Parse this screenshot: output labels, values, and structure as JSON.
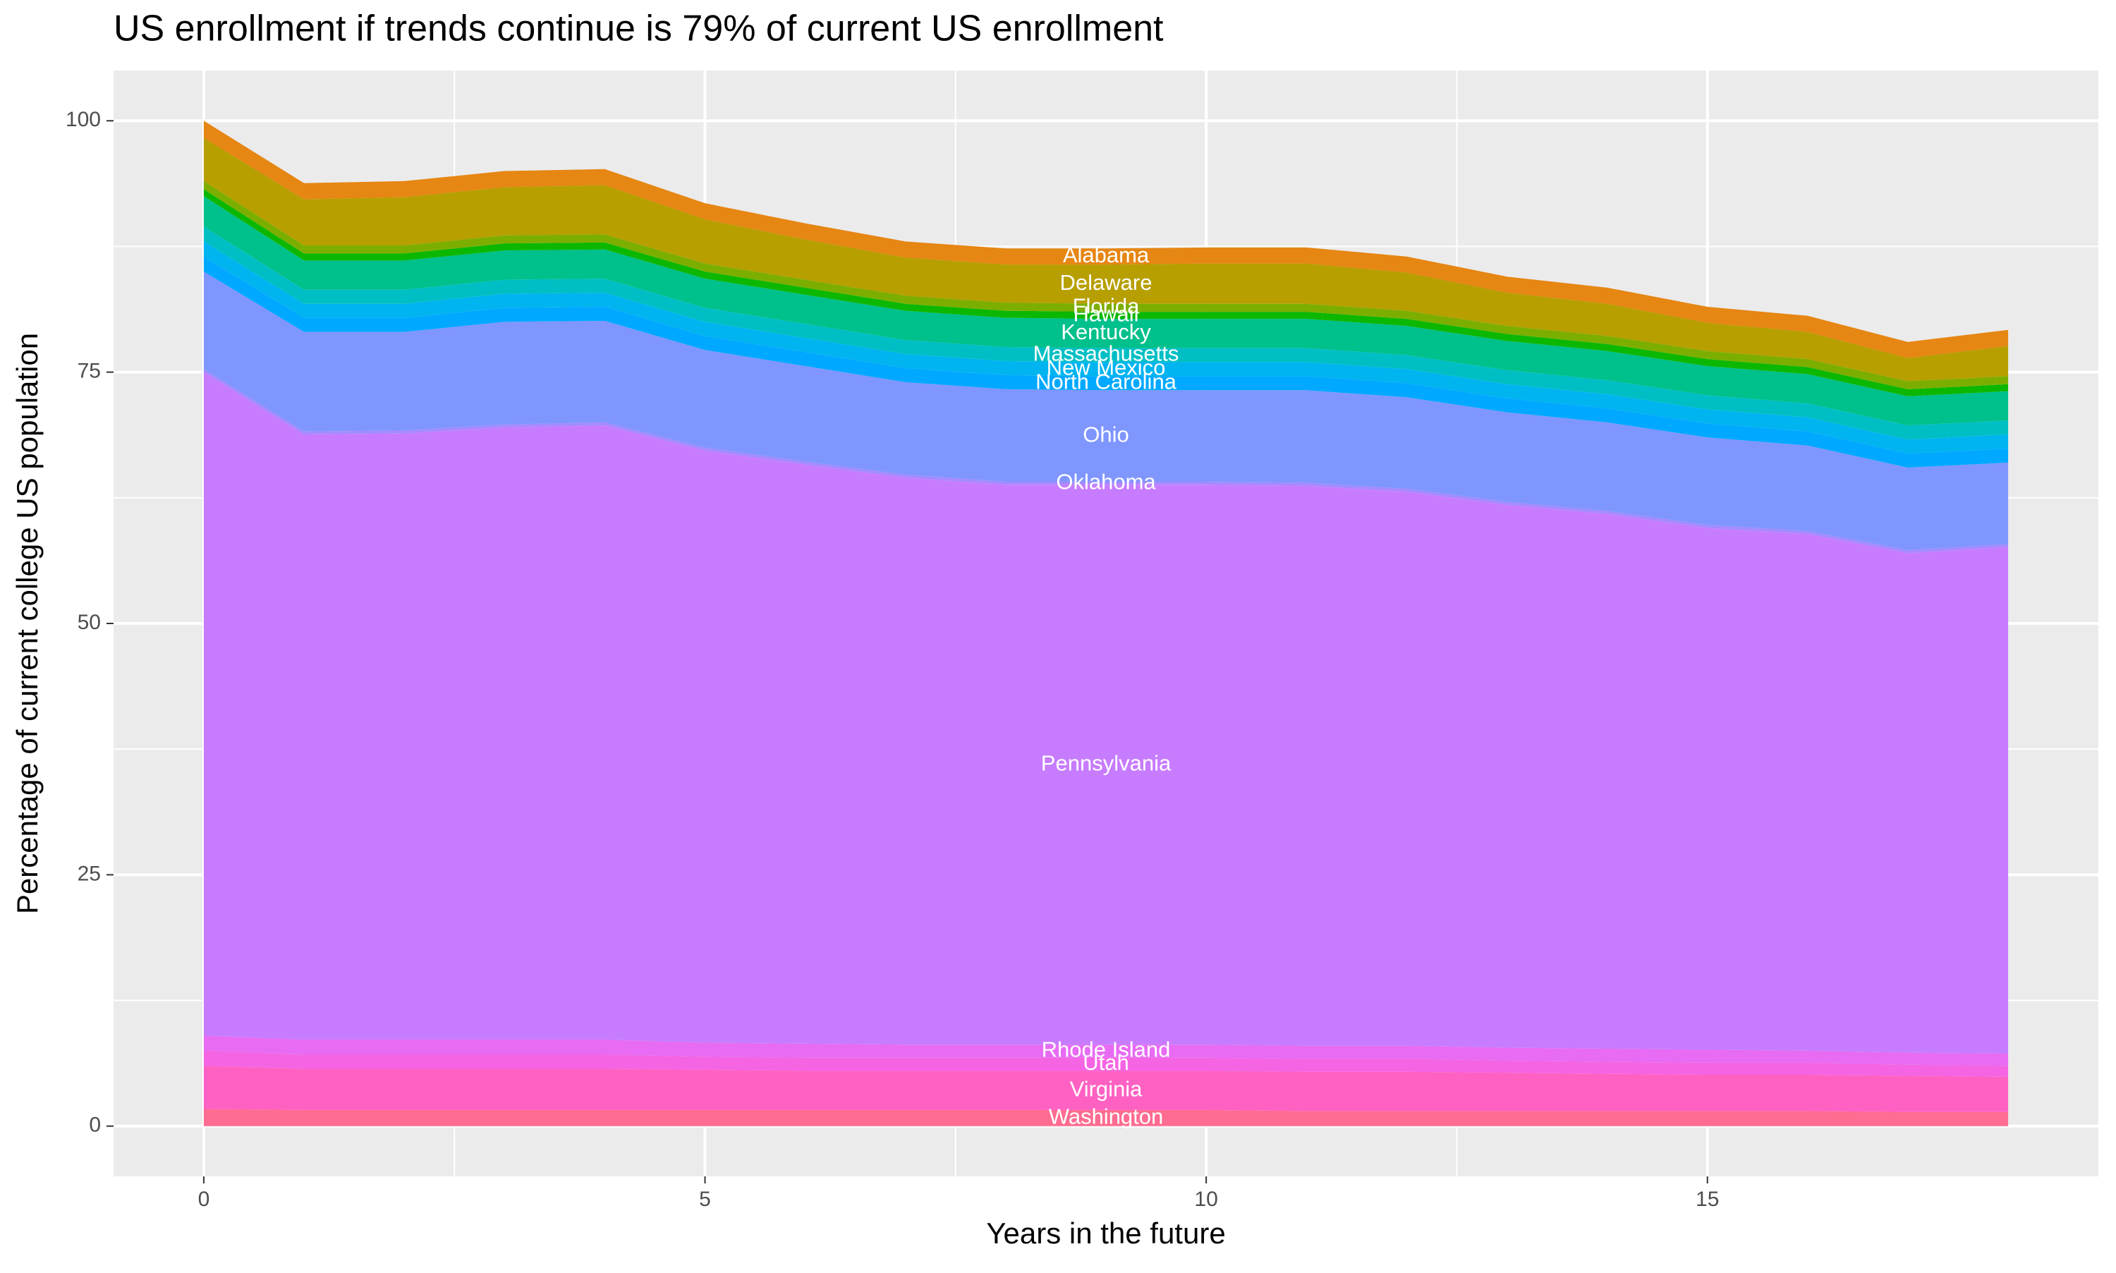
{
  "chart_data": {
    "type": "stacked-area",
    "title": "US enrollment if trends continue is 79% of current US enrollment",
    "x_label": "Years in the future",
    "y_label": "Percentage of current college US population",
    "x": [
      0,
      1,
      2,
      3,
      4,
      5,
      6,
      7,
      8,
      9,
      10,
      11,
      12,
      13,
      14,
      15,
      16,
      17,
      18
    ],
    "xlim": [
      -0.9,
      18.9
    ],
    "xticks": [
      0,
      5,
      10,
      15
    ],
    "ylim": [
      -5,
      105
    ],
    "yticks": [
      0,
      25,
      50,
      75,
      100
    ],
    "grid": true,
    "series": [
      {
        "name": "Washington",
        "color": "#FF6C91",
        "values": [
          1.7,
          1.6,
          1.6,
          1.6,
          1.6,
          1.6,
          1.6,
          1.6,
          1.6,
          1.6,
          1.6,
          1.5,
          1.5,
          1.5,
          1.5,
          1.5,
          1.5,
          1.4,
          1.4
        ]
      },
      {
        "name": "Virginia",
        "color": "#FF61C3",
        "values": [
          4.3,
          4.1,
          4.1,
          4.1,
          4.1,
          4.0,
          3.9,
          3.9,
          3.9,
          3.9,
          3.9,
          3.9,
          3.9,
          3.8,
          3.7,
          3.6,
          3.6,
          3.6,
          3.5
        ]
      },
      {
        "name": "Utah",
        "color": "#F564E3",
        "values": [
          1.5,
          1.4,
          1.4,
          1.4,
          1.4,
          1.3,
          1.3,
          1.3,
          1.3,
          1.3,
          1.3,
          1.3,
          1.3,
          1.2,
          1.2,
          1.2,
          1.2,
          1.1,
          1.1
        ]
      },
      {
        "name": "Rhode Island",
        "color": "#E76BF3",
        "values": [
          1.5,
          1.5,
          1.5,
          1.5,
          1.5,
          1.4,
          1.4,
          1.3,
          1.3,
          1.3,
          1.3,
          1.3,
          1.3,
          1.3,
          1.3,
          1.3,
          1.2,
          1.2,
          1.2
        ]
      },
      {
        "name": "Pennsylvania",
        "color": "#C77CFF",
        "values": [
          66,
          60.2,
          60.3,
          60.9,
          61.1,
          58.9,
          57.6,
          56.4,
          55.7,
          55.7,
          55.7,
          55.7,
          55.1,
          54,
          53.2,
          51.9,
          51.4,
          49.7,
          50.4
        ]
      },
      {
        "name": "Oklahoma",
        "color": "#A58AFF",
        "values": [
          0.3,
          0.3,
          0.3,
          0.3,
          0.3,
          0.3,
          0.3,
          0.3,
          0.3,
          0.3,
          0.3,
          0.3,
          0.3,
          0.3,
          0.3,
          0.3,
          0.3,
          0.3,
          0.3
        ]
      },
      {
        "name": "Ohio",
        "color": "#7F96FF",
        "values": [
          9.7,
          9.9,
          9.8,
          10.2,
          10.1,
          9.7,
          9.5,
          9.2,
          9.2,
          9.1,
          9.1,
          9.2,
          9.1,
          8.9,
          8.8,
          8.7,
          8.5,
          8.2,
          8.1
        ]
      },
      {
        "name": "North Carolina",
        "color": "#00A9FF",
        "values": [
          1.5,
          1.4,
          1.4,
          1.4,
          1.4,
          1.4,
          1.4,
          1.4,
          1.4,
          1.4,
          1.4,
          1.4,
          1.4,
          1.4,
          1.4,
          1.4,
          1.4,
          1.4,
          1.4
        ]
      },
      {
        "name": "New Mexico",
        "color": "#00B4F0",
        "values": [
          1.5,
          1.4,
          1.4,
          1.4,
          1.4,
          1.4,
          1.4,
          1.4,
          1.4,
          1.4,
          1.4,
          1.4,
          1.4,
          1.4,
          1.4,
          1.4,
          1.4,
          1.4,
          1.4
        ]
      },
      {
        "name": "Massachusetts",
        "color": "#00BFC4",
        "values": [
          1.5,
          1.4,
          1.4,
          1.4,
          1.4,
          1.4,
          1.4,
          1.4,
          1.4,
          1.4,
          1.4,
          1.4,
          1.4,
          1.4,
          1.4,
          1.4,
          1.4,
          1.4,
          1.4
        ]
      },
      {
        "name": "Kentucky",
        "color": "#00C08B",
        "values": [
          3,
          2.9,
          2.9,
          2.9,
          2.9,
          2.9,
          2.9,
          2.9,
          2.9,
          2.9,
          2.9,
          2.9,
          2.9,
          2.9,
          2.9,
          2.9,
          2.9,
          2.9,
          2.9
        ]
      },
      {
        "name": "Hawaii",
        "color": "#0CB702",
        "values": [
          0.7,
          0.7,
          0.7,
          0.7,
          0.7,
          0.7,
          0.7,
          0.7,
          0.7,
          0.7,
          0.7,
          0.7,
          0.7,
          0.7,
          0.7,
          0.7,
          0.7,
          0.7,
          0.7
        ]
      },
      {
        "name": "Florida",
        "color": "#7CAE00",
        "values": [
          0.8,
          0.8,
          0.8,
          0.8,
          0.8,
          0.8,
          0.8,
          0.8,
          0.8,
          0.8,
          0.8,
          0.8,
          0.8,
          0.8,
          0.8,
          0.8,
          0.8,
          0.8,
          0.8
        ]
      },
      {
        "name": "Delaware",
        "color": "#B79F00",
        "values": [
          4.3,
          4.6,
          4.8,
          4.8,
          4.9,
          4.4,
          4.0,
          3.8,
          3.8,
          3.9,
          4.0,
          4.0,
          3.8,
          3.3,
          3.2,
          2.8,
          2.7,
          2.3,
          3.0
        ]
      },
      {
        "name": "Alabama",
        "color": "#E68613",
        "values": [
          1.7,
          1.6,
          1.6,
          1.6,
          1.6,
          1.6,
          1.6,
          1.6,
          1.6,
          1.6,
          1.6,
          1.6,
          1.6,
          1.6,
          1.6,
          1.6,
          1.6,
          1.6,
          1.6
        ]
      }
    ]
  }
}
